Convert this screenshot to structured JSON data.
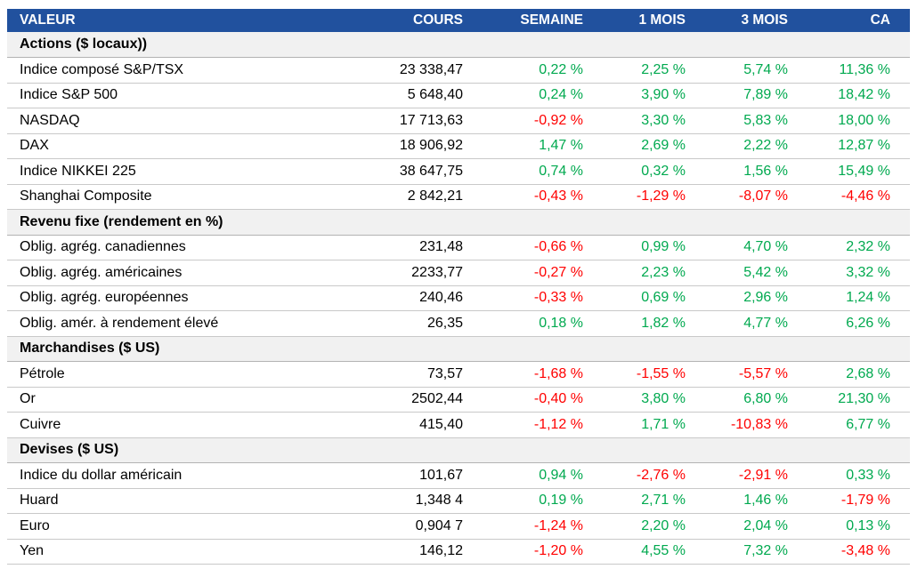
{
  "colors": {
    "header_bg": "#21519E",
    "header_text": "#FFFFFF",
    "positive": "#00A94F",
    "negative": "#FF0000",
    "section_bg": "#F1F1F1",
    "row_divider": "#C9C9C9"
  },
  "chart_data": {
    "type": "table",
    "columns": [
      "VALEUR",
      "COURS",
      "SEMAINE",
      "1 MOIS",
      "3 MOIS",
      "CA"
    ],
    "sections": [
      {
        "title": "Actions ($ locaux))",
        "rows": [
          {
            "label": "Indice composé S&P/TSX",
            "cours": "23 338,47",
            "values": [
              "0,22 %",
              "2,25 %",
              "5,74 %",
              "11,36 %"
            ]
          },
          {
            "label": "Indice S&P 500",
            "cours": "5 648,40",
            "values": [
              "0,24 %",
              "3,90 %",
              "7,89 %",
              "18,42 %"
            ]
          },
          {
            "label": "NASDAQ",
            "cours": "17 713,63",
            "values": [
              "-0,92 %",
              "3,30 %",
              "5,83 %",
              "18,00 %"
            ]
          },
          {
            "label": "DAX",
            "cours": "18 906,92",
            "values": [
              "1,47 %",
              "2,69 %",
              "2,22 %",
              "12,87 %"
            ]
          },
          {
            "label": "Indice NIKKEI 225",
            "cours": "38 647,75",
            "values": [
              "0,74 %",
              "0,32 %",
              "1,56 %",
              "15,49 %"
            ]
          },
          {
            "label": "Shanghai Composite",
            "cours": "2 842,21",
            "values": [
              "-0,43 %",
              "-1,29 %",
              "-8,07 %",
              "-4,46 %"
            ]
          }
        ]
      },
      {
        "title": "Revenu fixe (rendement en %)",
        "rows": [
          {
            "label": "Oblig. agrég. canadiennes",
            "cours": "231,48",
            "values": [
              "-0,66 %",
              "0,99 %",
              "4,70 %",
              "2,32 %"
            ]
          },
          {
            "label": "Oblig. agrég. américaines",
            "cours": "2233,77",
            "values": [
              "-0,27 %",
              "2,23 %",
              "5,42 %",
              "3,32 %"
            ]
          },
          {
            "label": "Oblig. agrég. européennes",
            "cours": "240,46",
            "values": [
              "-0,33 %",
              "0,69 %",
              "2,96 %",
              "1,24 %"
            ]
          },
          {
            "label": "Oblig. amér. à rendement élevé",
            "cours": "26,35",
            "values": [
              "0,18 %",
              "1,82 %",
              "4,77 %",
              "6,26 %"
            ]
          }
        ]
      },
      {
        "title": "Marchandises ($ US)",
        "rows": [
          {
            "label": "Pétrole",
            "cours": "73,57",
            "values": [
              "-1,68 %",
              "-1,55 %",
              "-5,57 %",
              "2,68 %"
            ]
          },
          {
            "label": "Or",
            "cours": "2502,44",
            "values": [
              "-0,40 %",
              "3,80 %",
              "6,80 %",
              "21,30 %"
            ]
          },
          {
            "label": "Cuivre",
            "cours": "415,40",
            "values": [
              "-1,12 %",
              "1,71 %",
              "-10,83 %",
              "6,77 %"
            ]
          }
        ]
      },
      {
        "title": "Devises ($ US)",
        "rows": [
          {
            "label": "Indice du dollar américain",
            "cours": "101,67",
            "values": [
              "0,94 %",
              "-2,76 %",
              "-2,91 %",
              "0,33 %"
            ]
          },
          {
            "label": "Huard",
            "cours": "1,348 4",
            "values": [
              "0,19 %",
              "2,71 %",
              "1,46 %",
              "-1,79 %"
            ]
          },
          {
            "label": "Euro",
            "cours": "0,904 7",
            "values": [
              "-1,24 %",
              "2,20 %",
              "2,04 %",
              "0,13 %"
            ]
          },
          {
            "label": "Yen",
            "cours": "146,12",
            "values": [
              "-1,20 %",
              "4,55 %",
              "7,32 %",
              "-3,48 %"
            ]
          }
        ]
      }
    ]
  }
}
